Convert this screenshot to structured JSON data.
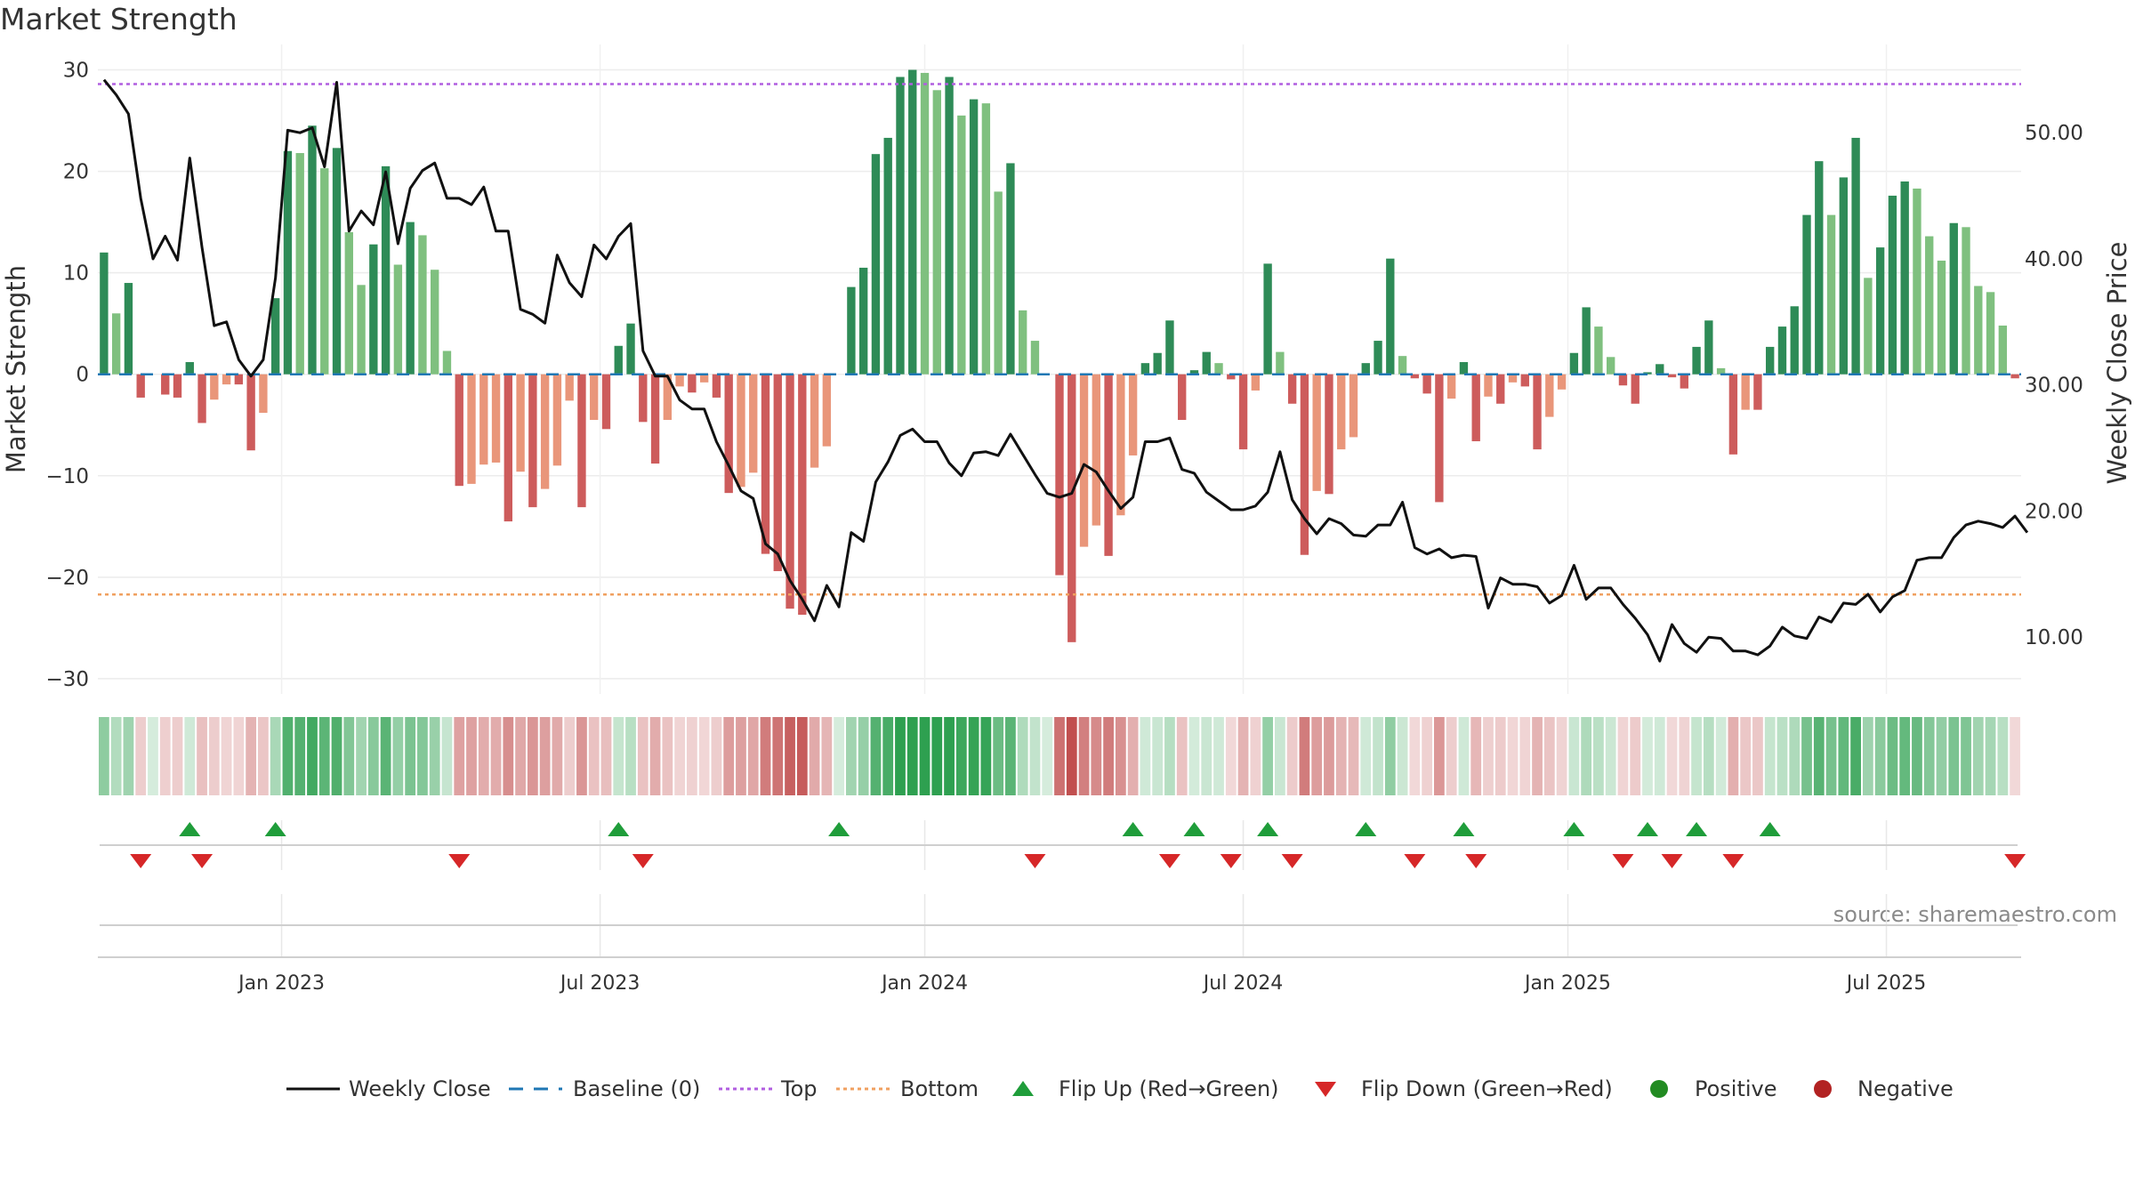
{
  "title": "Market Strength",
  "source": "source: sharemaestro.com",
  "colors": {
    "close_line": "#111111",
    "baseline": "#1f77b4",
    "top": "#b15ee0",
    "bottom": "#f0a060",
    "flip_up": "#1f9d3a",
    "flip_down": "#d62728",
    "positive": "#228B22",
    "negative": "#B22222",
    "bar_dark_green": "#2e8b57",
    "bar_light_green": "#7fc07f",
    "bar_dark_red": "#cd5c5c",
    "bar_light_red": "#e9967a"
  },
  "chart_data": {
    "type": "bar+line",
    "title": "Market Strength",
    "left_axis": {
      "label": "Market Strength",
      "ticks": [
        30,
        20,
        10,
        0,
        -10,
        -20,
        -30
      ],
      "tick_labels": [
        "30",
        "20",
        "10",
        "0",
        "−10",
        "−20",
        "−30"
      ],
      "range": [
        -31.5,
        32.5
      ]
    },
    "right_axis": {
      "label": "Weekly Close Price",
      "ticks": [
        50,
        40,
        30,
        20,
        10
      ],
      "tick_labels": [
        "50.00",
        "40.00",
        "30.00",
        "20.00",
        "10.00"
      ],
      "range": [
        5.5,
        57.0
      ]
    },
    "top_level": 28.6,
    "bottom_level": -21.7,
    "x_ticks": [
      "Jan 2023",
      "Jul 2023",
      "Jan 2024",
      "Jul 2024",
      "Jan 2025",
      "Jul 2025"
    ],
    "x_tick_weeks": [
      15,
      41,
      67.5,
      93.5,
      120,
      146
    ],
    "strength": [
      12,
      6,
      9,
      -2.3,
      0,
      -2,
      -2.3,
      1.2,
      -4.8,
      -2.5,
      -1,
      -1,
      -7.5,
      -3.8,
      7.5,
      22,
      21.8,
      24.5,
      20.3,
      22.3,
      14,
      8.8,
      12.8,
      20.5,
      10.8,
      15,
      13.7,
      10.3,
      2.3,
      -11,
      -10.8,
      -8.9,
      -8.7,
      -14.5,
      -9.6,
      -13.1,
      -11.3,
      -9,
      -2.6,
      -13.1,
      -4.5,
      -5.4,
      2.8,
      5,
      -4.7,
      -8.8,
      -4.5,
      -1.2,
      -1.8,
      -0.8,
      -2.3,
      -11.7,
      -11.1,
      -9.7,
      -17.7,
      -19.4,
      -23.1,
      -23.7,
      -9.2,
      -7.1,
      0,
      8.6,
      10.5,
      21.7,
      23.3,
      29.3,
      30,
      29.7,
      28,
      29.3,
      25.5,
      27.1,
      26.7,
      18,
      20.8,
      6.3,
      3.3,
      0,
      -19.8,
      -26.4,
      -17,
      -14.9,
      -17.9,
      -13.9,
      -8,
      1.1,
      2.1,
      5.3,
      -4.5,
      0.4,
      2.2,
      1.1,
      -0.5,
      -7.4,
      -1.6,
      10.9,
      2.2,
      -2.9,
      -17.8,
      -11.5,
      -11.8,
      -7.4,
      -6.2,
      1.1,
      3.3,
      11.4,
      1.8,
      -0.4,
      -1.9,
      -12.6,
      -2.4,
      1.2,
      -6.6,
      -2.2,
      -2.9,
      -0.8,
      -1.2,
      -7.4,
      -4.2,
      -1.5,
      2.1,
      6.6,
      4.7,
      1.7,
      -1.1,
      -2.9,
      0.2,
      1,
      -0.3,
      -1.4,
      2.7,
      5.3,
      0.6,
      -7.9,
      -3.5,
      -3.5,
      2.7,
      4.7,
      6.7,
      15.7,
      21,
      15.7,
      19.4,
      23.3,
      9.5,
      12.5,
      17.6,
      19,
      18.3,
      13.6,
      11.2,
      14.9,
      14.5,
      8.7,
      8.1,
      4.8,
      -0.4
    ],
    "weekly_close": [
      54.2,
      53,
      51.5,
      44.8,
      40,
      41.8,
      39.9,
      48,
      40.9,
      34.7,
      35,
      32,
      30.7,
      32,
      38.5,
      50.2,
      50,
      50.4,
      47.3,
      54,
      42.2,
      43.8,
      42.7,
      46.9,
      41.2,
      45.6,
      47,
      47.6,
      44.8,
      44.8,
      44.3,
      45.7,
      42.2,
      42.2,
      36,
      35.6,
      34.9,
      40.3,
      38.1,
      37,
      41.1,
      40,
      41.8,
      42.8,
      32.7,
      30.7,
      30.7,
      28.8,
      28.1,
      28.1,
      25.5,
      23.6,
      21.6,
      21,
      17.4,
      16.6,
      14.5,
      13,
      11.3,
      14.1,
      12.4,
      18.3,
      17.6,
      22.3,
      23.9,
      26,
      26.5,
      25.5,
      25.5,
      23.8,
      22.8,
      24.6,
      24.7,
      24.4,
      26.1,
      24.5,
      22.9,
      21.4,
      21.1,
      21.4,
      23.7,
      23.1,
      21.6,
      20.2,
      21.1,
      25.5,
      25.5,
      25.8,
      23.3,
      23,
      21.5,
      20.8,
      20.1,
      20.1,
      20.4,
      21.5,
      24.7,
      20.9,
      19.4,
      18.2,
      19.4,
      19,
      18.1,
      18,
      18.9,
      18.9,
      20.7,
      17.1,
      16.6,
      17,
      16.3,
      16.5,
      16.4,
      12.3,
      14.7,
      14.2,
      14.2,
      14,
      12.7,
      13.3,
      15.7,
      13,
      13.9,
      13.9,
      12.6,
      11.5,
      10.2,
      8.1,
      11,
      9.5,
      8.8,
      10,
      9.9,
      8.9,
      8.9,
      8.6,
      9.3,
      10.8,
      10.1,
      9.9,
      11.6,
      11.2,
      12.7,
      12.6,
      13.4,
      12,
      13.2,
      13.7,
      16.1,
      16.3,
      16.3,
      17.9,
      18.9,
      19.2,
      19,
      18.7,
      19.6,
      18.3
    ],
    "flip_up_weeks": [
      7,
      14,
      42,
      60,
      84,
      89,
      95,
      103,
      111,
      120,
      126,
      130,
      136
    ],
    "flip_down_weeks": [
      3,
      8,
      29,
      44,
      76,
      87,
      92,
      97,
      107,
      112,
      124,
      128,
      133,
      156
    ],
    "legend": [
      "Weekly Close",
      "Baseline (0)",
      "Top",
      "Bottom",
      "Flip Up (Red→Green)",
      "Flip Down (Green→Red)",
      "Positive",
      "Negative"
    ]
  }
}
